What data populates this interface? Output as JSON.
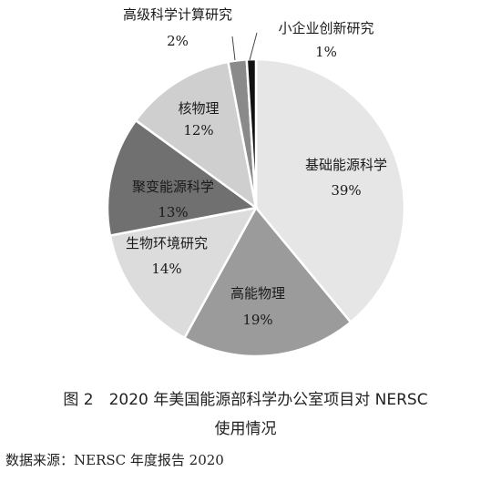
{
  "chart_data": {
    "type": "pie",
    "slices": [
      {
        "name": "基础能源科学",
        "value": 39,
        "label": "39%",
        "color": "#e6e6e6"
      },
      {
        "name": "高能物理",
        "value": 19,
        "label": "19%",
        "color": "#9b9b9b"
      },
      {
        "name": "生物环境研究",
        "value": 14,
        "label": "14%",
        "color": "#dcdcdc"
      },
      {
        "name": "聚变能源科学",
        "value": 13,
        "label": "13%",
        "color": "#707070"
      },
      {
        "name": "核物理",
        "value": 12,
        "label": "12%",
        "color": "#cfcfcf"
      },
      {
        "name": "高级科学计算研究",
        "value": 2,
        "label": "2%",
        "color": "#8a8a8a"
      },
      {
        "name": "小企业创新研究",
        "value": 1,
        "label": "1%",
        "color": "#111111"
      }
    ]
  },
  "caption": {
    "line1": "图 2　2020 年美国能源部科学办公室项目对 NERSC",
    "line2": "使用情况"
  },
  "source": "数据来源：NERSC 年度报告 2020"
}
